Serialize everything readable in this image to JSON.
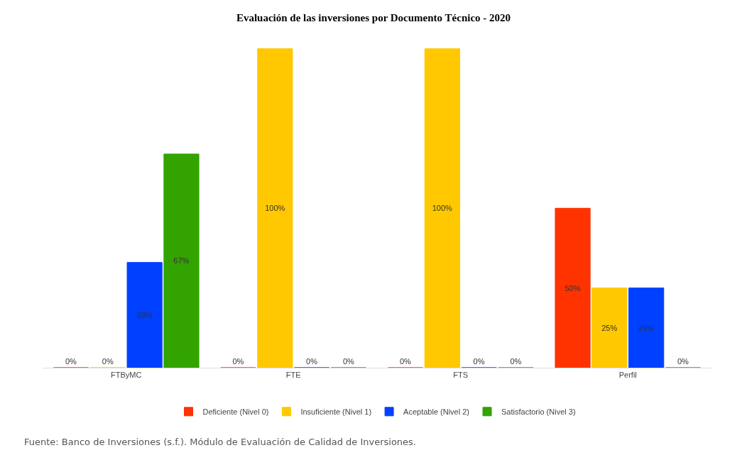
{
  "chart_data": {
    "type": "bar",
    "title": "Evaluación de las inversiones por Documento Técnico - 2020",
    "categories": [
      "FTByMC",
      "FTE",
      "FTS",
      "Perfil"
    ],
    "series": [
      {
        "name": "Deficiente (Nivel 0)",
        "color": "#ff3300",
        "values": [
          0,
          0,
          0,
          50
        ],
        "value_labels": [
          "0%",
          "0%",
          "0%",
          "50%"
        ]
      },
      {
        "name": "Insuficiente (Nivel 1)",
        "color": "#ffc800",
        "values": [
          0,
          100,
          100,
          25
        ],
        "value_labels": [
          "0%",
          "100%",
          "100%",
          "25%"
        ]
      },
      {
        "name": "Aceptable (Nivel 2)",
        "color": "#0040ff",
        "values": [
          33,
          0,
          0,
          25
        ],
        "value_labels": [
          "33%",
          "0%",
          "0%",
          "25%"
        ]
      },
      {
        "name": "Satisfactorio (Nivel 3)",
        "color": "#33a300",
        "values": [
          67,
          0,
          0,
          0
        ],
        "value_labels": [
          "67%",
          "0%",
          "0%",
          "0%"
        ]
      }
    ],
    "annotations": [
      "Fuente: Banco de Inversiones (s.f.). Módulo de Evaluación de Calidad de Inversiones."
    ],
    "tick_labels": "x",
    "legend": "bottom"
  }
}
